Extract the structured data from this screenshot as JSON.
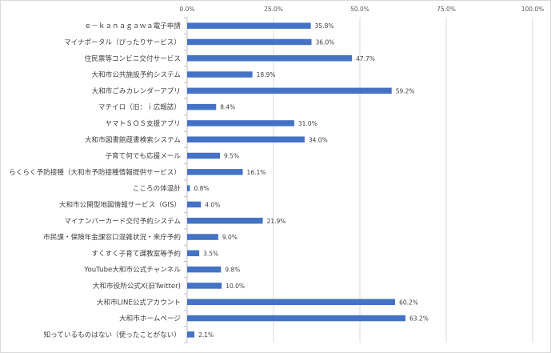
{
  "chart_data": {
    "type": "bar",
    "orientation": "horizontal",
    "title": "",
    "xlabel": "",
    "ylabel": "",
    "xlim": [
      0,
      100
    ],
    "x_ticks": [
      "0.0%",
      "25.0%",
      "50.0%",
      "75.0%",
      "100.0%"
    ],
    "tick_axis_position": "top",
    "grid": true,
    "legend": "none",
    "bar_color": "#4472c4",
    "categories": [
      "ｅ－ｋａｎａｇａｗａ電子申請",
      "マイナポータル（ぴったりサービス）",
      "住民票等コンビニ交付サービス",
      "大和市公共施設予約システム",
      "大和市ごみカレンダーアプリ",
      "マチイロ（旧：ｉ広報誌）",
      "ヤマトＳＯＳ支援アプリ",
      "大和市図書館蔵書検索システム",
      "子育て何でも応援メール",
      "らくらく予防接種（大和市予防接種情報提供サービス）",
      "こころの体温計",
      "大和市公開型地図情報サービス（GIS）",
      "マイナンバーカード交付予約システム",
      "市民課・保険年金課窓口混雑状況・来庁予約",
      "すくすく子育て課教室等予約",
      "YouTube大和市公式チャンネル",
      "大和市役所公式X(旧Twitter)",
      "大和市LINE公式アカウント",
      "大和市ホームページ",
      "知っているものはない（使ったことがない）"
    ],
    "values": [
      35.8,
      36.0,
      47.7,
      18.9,
      59.2,
      8.4,
      31.0,
      34.0,
      9.5,
      16.1,
      0.8,
      4.0,
      21.9,
      9.0,
      3.5,
      9.8,
      10.0,
      60.2,
      63.2,
      2.1
    ],
    "data_labels": [
      "35.8%",
      "36.0%",
      "47.7%",
      "18.9%",
      "59.2%",
      "8.4%",
      "31.0%",
      "34.0%",
      "9.5%",
      "16.1%",
      "0.8%",
      "4.0%",
      "21.9%",
      "9.0%",
      "3.5%",
      "9.8%",
      "10.0%",
      "60.2%",
      "63.2%",
      "2.1%"
    ]
  }
}
